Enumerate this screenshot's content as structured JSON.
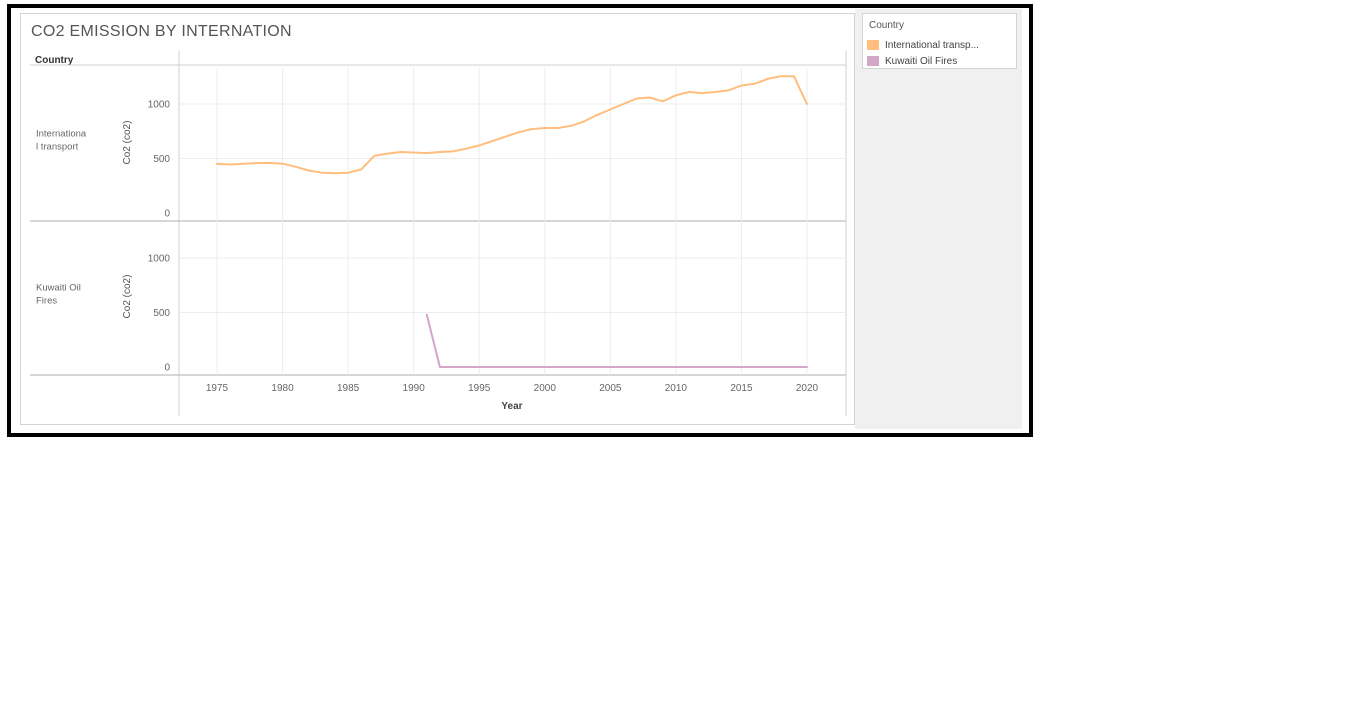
{
  "title": "CO2 EMISSION BY INTERNATION",
  "row_header": "Country",
  "legend": {
    "title": "Country",
    "items": [
      {
        "label": "International transp...",
        "color": "#ffbe7d"
      },
      {
        "label": "Kuwaiti Oil Fires",
        "color": "#d4a6c8"
      }
    ]
  },
  "chart_data": {
    "type": "line",
    "xlabel": "Year",
    "ylabel": "Co2 (co2)",
    "xlim": [
      1972,
      2023
    ],
    "ylim": [
      0,
      1300
    ],
    "x_ticks": [
      1975,
      1980,
      1985,
      1990,
      1995,
      2000,
      2005,
      2010,
      2015,
      2020
    ],
    "y_ticks": [
      0,
      500,
      1000
    ],
    "grid": true,
    "legend_position": "right",
    "panels": [
      {
        "row_label": "International transport",
        "row_label_lines": [
          "Internationa",
          "l transport"
        ],
        "series": {
          "name": "International transport",
          "color": "#ffbe7d",
          "x": [
            1975,
            1976,
            1977,
            1978,
            1979,
            1980,
            1981,
            1982,
            1983,
            1984,
            1985,
            1986,
            1987,
            1988,
            1989,
            1990,
            1991,
            1992,
            1993,
            1994,
            1995,
            1996,
            1997,
            1998,
            1999,
            2000,
            2001,
            2002,
            2003,
            2004,
            2005,
            2006,
            2007,
            2008,
            2009,
            2010,
            2011,
            2012,
            2013,
            2014,
            2015,
            2016,
            2017,
            2018,
            2019,
            2020
          ],
          "y": [
            450,
            445,
            452,
            458,
            460,
            452,
            425,
            390,
            370,
            365,
            370,
            400,
            525,
            545,
            560,
            555,
            550,
            560,
            565,
            590,
            620,
            660,
            700,
            740,
            770,
            780,
            780,
            800,
            840,
            900,
            950,
            1000,
            1050,
            1060,
            1025,
            1080,
            1110,
            1100,
            1110,
            1125,
            1170,
            1185,
            1230,
            1255,
            1255,
            1000
          ]
        }
      },
      {
        "row_label": "Kuwaiti Oil Fires",
        "row_label_lines": [
          "Kuwaiti Oil",
          "Fires"
        ],
        "series": {
          "name": "Kuwaiti Oil Fires",
          "color": "#d4a6c8",
          "x": [
            1991,
            1992,
            1993,
            1994,
            1995,
            1996,
            1997,
            1998,
            1999,
            2000,
            2001,
            2002,
            2003,
            2004,
            2005,
            2006,
            2007,
            2008,
            2009,
            2010,
            2011,
            2012,
            2013,
            2014,
            2015,
            2016,
            2017,
            2018,
            2019,
            2020
          ],
          "y": [
            480,
            0,
            0,
            0,
            0,
            0,
            0,
            0,
            0,
            0,
            0,
            0,
            0,
            0,
            0,
            0,
            0,
            0,
            0,
            0,
            0,
            0,
            0,
            0,
            0,
            0,
            0,
            0,
            0,
            0
          ]
        }
      }
    ]
  }
}
